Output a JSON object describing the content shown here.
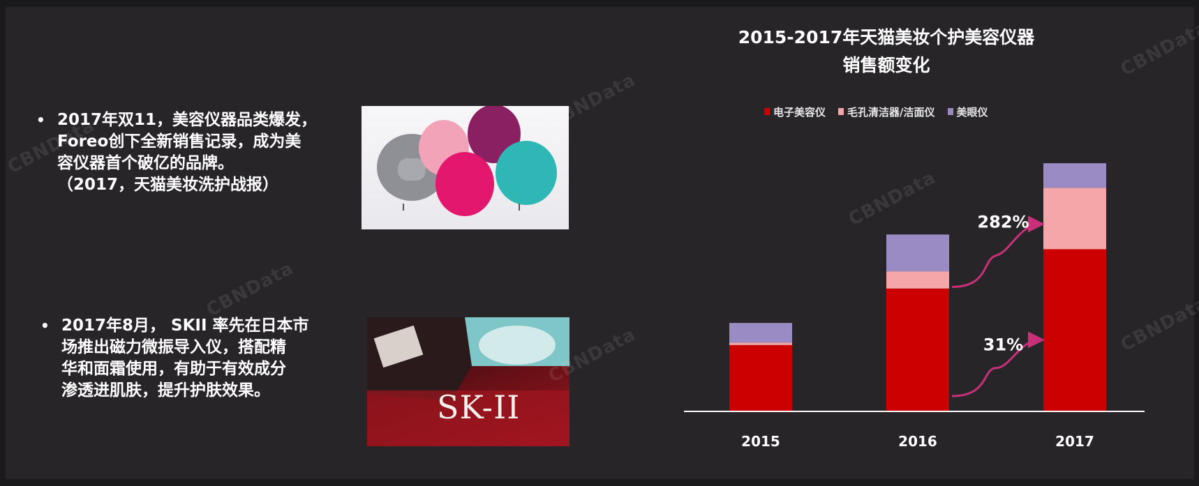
{
  "bullets": [
    {
      "marker": "•",
      "lines": [
        "2017年双11，美容仪器品类爆发，",
        "Foreo创下全新销售记录，成为美",
        "容仪器首个破亿的品牌。",
        "（2017，天猫美妆洗护战报）"
      ]
    },
    {
      "marker": "•",
      "lines": [
        "2017年8月， SKII 率先在日本市",
        "场推出磁力微振导入仪，搭配精",
        "华和面霜使用，有助于有效成分",
        "渗透进肌肤，提升护肤效果。"
      ]
    }
  ],
  "photos": {
    "foreo_alt": "Foreo cleansing devices",
    "skii_brand": "SK-II"
  },
  "watermark": "CBNData",
  "chart_data": {
    "type": "bar",
    "stacked": true,
    "title_line1": "2015-2017年天猫美妆个护美容仪器",
    "title_line2": "销售额变化",
    "categories": [
      "2015",
      "2016",
      "2017"
    ],
    "series": [
      {
        "name": "电子美容仪",
        "color": "#cc0000",
        "values": [
          27,
          50,
          66
        ]
      },
      {
        "name": "毛孔清洁器/洁面仪",
        "color": "#f4a6a9",
        "values": [
          1,
          7,
          25
        ]
      },
      {
        "name": "美眼仪",
        "color": "#9b8bc4",
        "values": [
          8,
          15,
          10
        ]
      }
    ],
    "annotations": [
      {
        "label": "282%",
        "from": "2016",
        "to": "2017",
        "series": "毛孔清洁器/洁面仪"
      },
      {
        "label": "31%",
        "from": "2016",
        "to": "2017",
        "series": "电子美容仪"
      }
    ],
    "ylim": [
      0,
      105
    ],
    "grid": false,
    "legend_position": "top"
  }
}
